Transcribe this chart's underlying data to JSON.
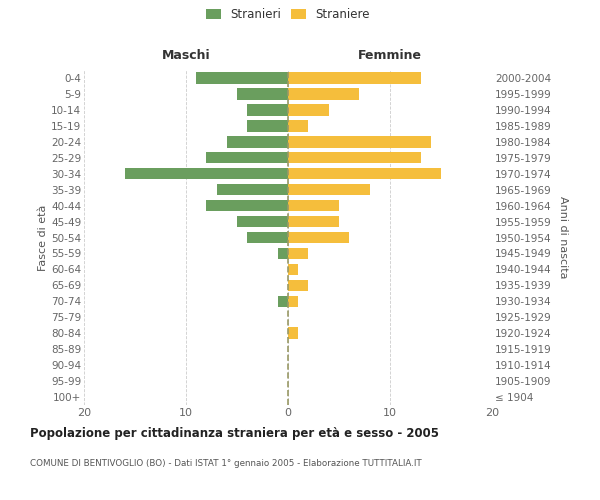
{
  "age_groups": [
    "100+",
    "95-99",
    "90-94",
    "85-89",
    "80-84",
    "75-79",
    "70-74",
    "65-69",
    "60-64",
    "55-59",
    "50-54",
    "45-49",
    "40-44",
    "35-39",
    "30-34",
    "25-29",
    "20-24",
    "15-19",
    "10-14",
    "5-9",
    "0-4"
  ],
  "birth_years": [
    "≤ 1904",
    "1905-1909",
    "1910-1914",
    "1915-1919",
    "1920-1924",
    "1925-1929",
    "1930-1934",
    "1935-1939",
    "1940-1944",
    "1945-1949",
    "1950-1954",
    "1955-1959",
    "1960-1964",
    "1965-1969",
    "1970-1974",
    "1975-1979",
    "1980-1984",
    "1985-1989",
    "1990-1994",
    "1995-1999",
    "2000-2004"
  ],
  "maschi": [
    0,
    0,
    0,
    0,
    0,
    0,
    1,
    0,
    0,
    1,
    4,
    5,
    8,
    7,
    16,
    8,
    6,
    4,
    4,
    5,
    9
  ],
  "femmine": [
    0,
    0,
    0,
    0,
    1,
    0,
    1,
    2,
    1,
    2,
    6,
    5,
    5,
    8,
    15,
    13,
    14,
    2,
    4,
    7,
    13
  ],
  "male_color": "#6a9e5e",
  "female_color": "#f5be3c",
  "bg_color": "#ffffff",
  "grid_color": "#cccccc",
  "dashed_color": "#999966",
  "title": "Popolazione per cittadinanza straniera per età e sesso - 2005",
  "subtitle": "COMUNE DI BENTIVOGLIO (BO) - Dati ISTAT 1° gennaio 2005 - Elaborazione TUTTITALIA.IT",
  "ylabel_left": "Fasce di età",
  "ylabel_right": "Anni di nascita",
  "header_left": "Maschi",
  "header_right": "Femmine",
  "legend_male": "Stranieri",
  "legend_female": "Straniere",
  "xlim": 20
}
